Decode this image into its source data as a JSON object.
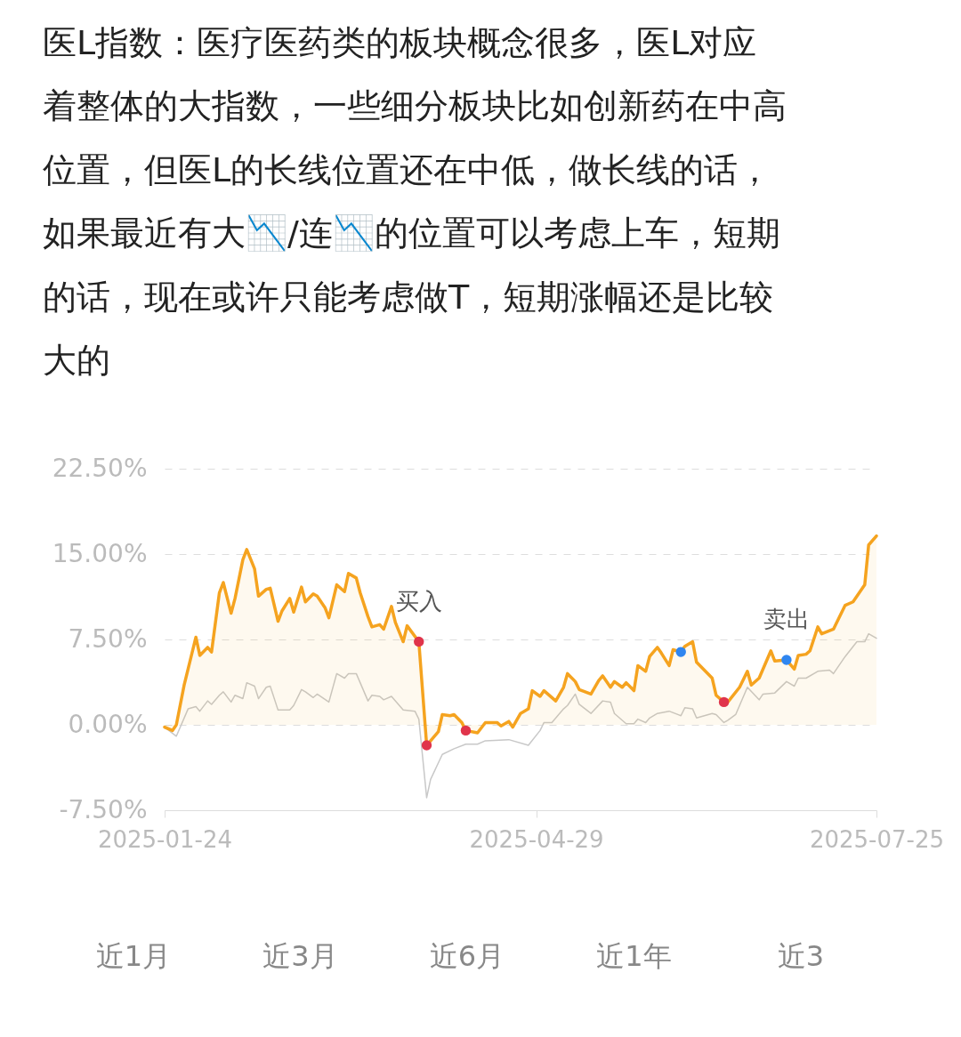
{
  "chart_data": {
    "type": "line",
    "title": "医L指数：医疗医药类的板块概念很多，医L对应着整体的大指数，一些细分板块比如创新药在中高位置，但医L的长线位置还在中低，做长线的话，如果最近有大📉/连📉的位置可以考虑上车，短期的话，现在或许只能考虑做T，短期涨幅还是比较大的",
    "xlim": [
      "2025-01-24",
      "2025-07-25"
    ],
    "xticks": [
      "2025-01-24",
      "2025-04-29",
      "2025-07-25"
    ],
    "ylim": [
      -7.5,
      22.5
    ],
    "yticks": [
      {
        "value": -7.5,
        "label": "-7.50%"
      },
      {
        "value": 0,
        "label": "0.00%"
      },
      {
        "value": 7.5,
        "label": "7.50%"
      },
      {
        "value": 15,
        "label": "15.00%"
      },
      {
        "value": 22.5,
        "label": "22.50%"
      }
    ],
    "grid": "y",
    "series": [
      {
        "color": "#c8c8c8",
        "x": [
          "2025-01-24",
          "2025-01-27",
          "2025-01-30",
          "2025-02-01",
          "2025-02-02",
          "2025-02-04",
          "2025-02-05",
          "2025-02-07",
          "2025-02-08",
          "2025-02-10",
          "2025-02-11",
          "2025-02-13",
          "2025-02-14",
          "2025-02-16",
          "2025-02-17",
          "2025-02-19",
          "2025-02-20",
          "2025-02-22",
          "2025-02-25",
          "2025-02-26",
          "2025-02-28",
          "2025-03-01",
          "2025-03-03",
          "2025-03-04",
          "2025-03-07",
          "2025-03-09",
          "2025-03-11",
          "2025-03-12",
          "2025-03-14",
          "2025-03-15",
          "2025-03-17",
          "2025-03-18",
          "2025-03-20",
          "2025-03-21",
          "2025-03-23",
          "2025-03-26",
          "2025-03-29",
          "2025-03-30",
          "2025-04-01",
          "2025-04-02",
          "2025-04-05",
          "2025-04-08",
          "2025-04-11",
          "2025-04-14",
          "2025-04-16",
          "2025-04-22",
          "2025-04-27",
          "2025-04-30",
          "2025-05-01",
          "2025-05-03",
          "2025-05-06",
          "2025-05-07",
          "2025-05-09",
          "2025-05-10",
          "2025-05-13",
          "2025-05-16",
          "2025-05-18",
          "2025-05-19",
          "2025-05-22",
          "2025-05-24",
          "2025-05-25",
          "2025-05-27",
          "2025-05-28",
          "2025-05-30",
          "2025-06-02",
          "2025-06-05",
          "2025-06-06",
          "2025-06-08",
          "2025-06-09",
          "2025-06-13",
          "2025-06-14",
          "2025-06-16",
          "2025-06-17",
          "2025-06-19",
          "2025-06-22",
          "2025-06-25",
          "2025-06-26",
          "2025-06-29",
          "2025-07-02",
          "2025-07-04",
          "2025-07-05",
          "2025-07-07",
          "2025-07-10",
          "2025-07-13",
          "2025-07-14",
          "2025-07-17",
          "2025-07-20",
          "2025-07-22",
          "2025-07-23",
          "2025-07-25"
        ],
        "values": [
          -0.2,
          -1.0,
          1.4,
          1.6,
          1.2,
          2.1,
          1.8,
          2.6,
          2.9,
          2.0,
          2.6,
          2.3,
          3.7,
          3.4,
          2.3,
          3.3,
          3.4,
          1.3,
          1.3,
          1.7,
          3.1,
          2.9,
          2.4,
          2.7,
          2.0,
          4.5,
          4.1,
          4.5,
          4.5,
          3.7,
          2.1,
          2.6,
          2.5,
          2.2,
          2.5,
          1.3,
          1.2,
          0.5,
          -6.4,
          -4.8,
          -2.6,
          -2.1,
          -1.7,
          -1.7,
          -1.4,
          -1.3,
          -1.8,
          -0.5,
          0.2,
          0.2,
          1.4,
          1.7,
          2.7,
          1.8,
          1.0,
          2.1,
          2.0,
          1.0,
          0.1,
          0.1,
          0.5,
          0.2,
          0.6,
          1.0,
          1.2,
          0.8,
          1.5,
          1.4,
          0.6,
          1.0,
          0.9,
          0.2,
          0.4,
          0.9,
          3.3,
          2.2,
          2.7,
          2.8,
          3.8,
          3.4,
          4.1,
          4.1,
          4.7,
          4.8,
          4.5,
          6.0,
          7.3,
          7.3,
          8.0,
          7.6
        ]
      },
      {
        "type": "area",
        "color": "#f5a31f",
        "x": [
          "2025-01-24",
          "2025-01-26",
          "2025-01-27",
          "2025-01-29",
          "2025-02-01",
          "2025-02-02",
          "2025-02-04",
          "2025-02-05",
          "2025-02-07",
          "2025-02-08",
          "2025-02-10",
          "2025-02-11",
          "2025-02-13",
          "2025-02-14",
          "2025-02-16",
          "2025-02-17",
          "2025-02-19",
          "2025-02-20",
          "2025-02-22",
          "2025-02-23",
          "2025-02-25",
          "2025-02-26",
          "2025-02-28",
          "2025-03-01",
          "2025-03-03",
          "2025-03-04",
          "2025-03-06",
          "2025-03-07",
          "2025-03-09",
          "2025-03-11",
          "2025-03-12",
          "2025-03-14",
          "2025-03-15",
          "2025-03-17",
          "2025-03-18",
          "2025-03-20",
          "2025-03-21",
          "2025-03-23",
          "2025-03-24",
          "2025-03-26",
          "2025-03-27",
          "2025-03-30",
          "2025-04-01",
          "2025-04-04",
          "2025-04-05",
          "2025-04-07",
          "2025-04-08",
          "2025-04-10",
          "2025-04-11",
          "2025-04-14",
          "2025-04-16",
          "2025-04-19",
          "2025-04-20",
          "2025-04-22",
          "2025-04-23",
          "2025-04-25",
          "2025-04-27",
          "2025-04-28",
          "2025-04-30",
          "2025-05-01",
          "2025-05-04",
          "2025-05-06",
          "2025-05-07",
          "2025-05-09",
          "2025-05-10",
          "2025-05-13",
          "2025-05-15",
          "2025-05-16",
          "2025-05-18",
          "2025-05-19",
          "2025-05-21",
          "2025-05-22",
          "2025-05-24",
          "2025-05-25",
          "2025-05-27",
          "2025-05-28",
          "2025-05-30",
          "2025-05-31",
          "2025-06-02",
          "2025-06-03",
          "2025-06-05",
          "2025-06-06",
          "2025-06-08",
          "2025-06-09",
          "2025-06-13",
          "2025-06-14",
          "2025-06-16",
          "2025-06-17",
          "2025-06-20",
          "2025-06-22",
          "2025-06-23",
          "2025-06-25",
          "2025-06-28",
          "2025-06-29",
          "2025-07-02",
          "2025-07-04",
          "2025-07-05",
          "2025-07-07",
          "2025-07-08",
          "2025-07-10",
          "2025-07-11",
          "2025-07-14",
          "2025-07-17",
          "2025-07-19",
          "2025-07-22",
          "2025-07-23",
          "2025-07-25"
        ],
        "values": [
          -0.2,
          -0.5,
          0,
          3.5,
          7.7,
          6.1,
          6.8,
          6.4,
          11.6,
          12.5,
          9.8,
          11.1,
          14.5,
          15.4,
          13.7,
          11.3,
          11.9,
          12.0,
          9.1,
          10.0,
          11.1,
          9.9,
          12.1,
          10.8,
          11.5,
          11.3,
          10.3,
          9.4,
          12.3,
          11.7,
          13.3,
          12.9,
          11.6,
          9.5,
          8.6,
          8.8,
          8.4,
          10.4,
          9.0,
          7.3,
          8.7,
          7.3,
          -1.8,
          -0.6,
          0.9,
          0.8,
          0.9,
          0.2,
          -0.5,
          -0.7,
          0.2,
          0.2,
          -0.1,
          0.3,
          -0.2,
          1.0,
          1.4,
          3.0,
          2.5,
          3.0,
          2.1,
          3.3,
          4.5,
          3.8,
          3.1,
          2.7,
          3.9,
          4.3,
          3.3,
          3.8,
          3.3,
          3.7,
          3.0,
          5.2,
          4.7,
          6.0,
          6.8,
          6.3,
          5.2,
          6.6,
          6.4,
          6.9,
          7.3,
          5.5,
          4.1,
          2.6,
          2.0,
          2.0,
          3.3,
          4.7,
          3.5,
          4.1,
          6.5,
          5.6,
          5.7,
          4.9,
          6.1,
          6.2,
          6.5,
          8.6,
          8.0,
          8.4,
          10.5,
          10.8,
          12.3,
          15.8,
          16.6
        ]
      },
      {
        "type": "scatter",
        "color": "#e0344b",
        "x": [
          "2025-03-30",
          "2025-04-01",
          "2025-04-11",
          "2025-06-16"
        ],
        "values": [
          7.3,
          -1.8,
          -0.5,
          2.0
        ]
      },
      {
        "type": "scatter",
        "color": "#2f86f0",
        "x": [
          "2025-06-05",
          "2025-07-02"
        ],
        "values": [
          6.4,
          5.7
        ]
      }
    ],
    "annotations": [
      {
        "text": "买入",
        "x": "2025-03-30",
        "y": 7.3
      },
      {
        "text": "卖出",
        "x": "2025-07-02",
        "y": 5.7
      },
      "近1月",
      "近3月",
      "近6月",
      "近1年",
      "近3"
    ]
  }
}
